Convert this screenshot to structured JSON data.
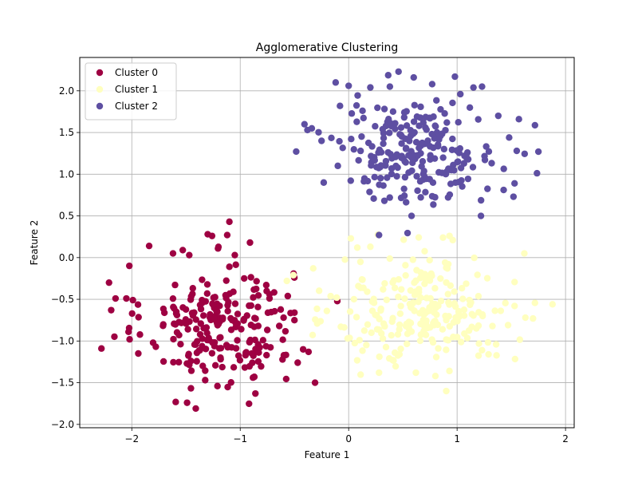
{
  "chart_data": {
    "type": "scatter",
    "title": "Agglomerative Clustering",
    "xlabel": "Feature 1",
    "ylabel": "Feature 2",
    "xlim": [
      -2.48,
      2.08
    ],
    "ylim": [
      -2.04,
      2.4
    ],
    "xticks": [
      -2,
      -1,
      0,
      1,
      2
    ],
    "yticks": [
      -2.0,
      -1.5,
      -1.0,
      -0.5,
      0.0,
      0.5,
      1.0,
      1.5,
      2.0
    ],
    "xtick_labels": [
      "−2",
      "−1",
      "0",
      "1",
      "2"
    ],
    "ytick_labels": [
      "−2.0",
      "−1.5",
      "−1.0",
      "−0.5",
      "0.0",
      "0.5",
      "1.0",
      "1.5",
      "2.0"
    ],
    "grid": true,
    "legend_position": "upper-left",
    "series": [
      {
        "name": "Cluster 0",
        "color": "#9e0142",
        "center": [
          -1.2,
          -0.8
        ],
        "spread": [
          0.34,
          0.36
        ],
        "count": 250,
        "points": [
          [
            -2.28,
            -1.09
          ],
          [
            -2.21,
            -0.3
          ],
          [
            -2.19,
            -0.63
          ],
          [
            -2.15,
            -0.49
          ],
          [
            -2.05,
            -0.49
          ],
          [
            -2.03,
            -0.89
          ],
          [
            -2.02,
            -0.98
          ],
          [
            -1.94,
            -1.15
          ],
          [
            -1.84,
            0.14
          ],
          [
            -1.99,
            -0.51
          ],
          [
            -1.1,
            0.43
          ],
          [
            -1.3,
            0.28
          ],
          [
            -1.26,
            0.26
          ],
          [
            -1.12,
            0.27
          ],
          [
            -0.91,
            0.18
          ],
          [
            -0.87,
            -1.43
          ],
          [
            -0.86,
            -1.63
          ],
          [
            -1.21,
            -1.54
          ],
          [
            -1.49,
            -1.74
          ],
          [
            -1.41,
            -1.81
          ],
          [
            -0.47,
            -1.26
          ],
          [
            -0.42,
            -1.1
          ],
          [
            -0.37,
            -1.13
          ],
          [
            -0.31,
            -1.5
          ],
          [
            -0.5,
            -0.75
          ],
          [
            -0.5,
            -0.66
          ],
          [
            -0.64,
            -0.82
          ],
          [
            -0.6,
            -0.72
          ],
          [
            -0.73,
            -0.49
          ],
          [
            -0.73,
            -0.44
          ],
          [
            -1.62,
            0.05
          ],
          [
            -1.53,
            0.09
          ],
          [
            -1.47,
            0.03
          ],
          [
            -1.05,
            0.03
          ],
          [
            -1.1,
            -0.11
          ]
        ]
      },
      {
        "name": "Cluster 1",
        "color": "#ffffbf",
        "center": [
          0.7,
          -0.65
        ],
        "spread": [
          0.4,
          0.33
        ],
        "count": 250,
        "points": [
          [
            1.88,
            -0.56
          ],
          [
            1.7,
            -0.73
          ],
          [
            1.63,
            -0.72
          ],
          [
            1.62,
            0.05
          ],
          [
            1.53,
            -0.58
          ],
          [
            1.47,
            -0.81
          ],
          [
            0.02,
            0.23
          ],
          [
            0.08,
            0.12
          ],
          [
            0.2,
            0.13
          ],
          [
            -0.29,
            -0.79
          ],
          [
            -0.11,
            -0.48
          ],
          [
            -0.01,
            -0.97
          ],
          [
            0.1,
            -0.99
          ],
          [
            0.93,
            0.26
          ],
          [
            0.87,
            0.24
          ],
          [
            0.96,
            0.21
          ],
          [
            0.9,
            -1.6
          ],
          [
            0.8,
            -1.42
          ],
          [
            0.62,
            -1.38
          ],
          [
            0.28,
            -1.38
          ],
          [
            1.29,
            -1.16
          ],
          [
            1.23,
            -1.11
          ],
          [
            1.36,
            -1.04
          ],
          [
            -0.51,
            -0.21
          ],
          [
            -0.57,
            -0.28
          ]
        ]
      },
      {
        "name": "Cluster 2",
        "color": "#5e4fa2",
        "center": [
          0.62,
          1.28
        ],
        "spread": [
          0.38,
          0.3
        ],
        "count": 250,
        "points": [
          [
            0.46,
            2.23
          ],
          [
            0.6,
            2.16
          ],
          [
            0.98,
            2.17
          ],
          [
            1.03,
            1.96
          ],
          [
            -0.12,
            2.1
          ],
          [
            0.0,
            2.06
          ],
          [
            0.2,
            2.04
          ],
          [
            0.38,
            2.05
          ],
          [
            0.77,
            2.08
          ],
          [
            1.23,
            2.05
          ],
          [
            1.75,
            1.27
          ],
          [
            1.55,
            1.28
          ],
          [
            1.57,
            1.66
          ],
          [
            1.48,
            1.44
          ],
          [
            1.38,
            1.7
          ],
          [
            -0.23,
            0.9
          ],
          [
            -0.1,
            1.1
          ],
          [
            -0.25,
            1.4
          ],
          [
            -0.38,
            1.53
          ],
          [
            -0.34,
            1.55
          ],
          [
            0.28,
            0.27
          ],
          [
            0.58,
            0.5
          ],
          [
            1.22,
            0.5
          ],
          [
            1.52,
            0.73
          ],
          [
            1.53,
            0.89
          ]
        ]
      }
    ]
  }
}
